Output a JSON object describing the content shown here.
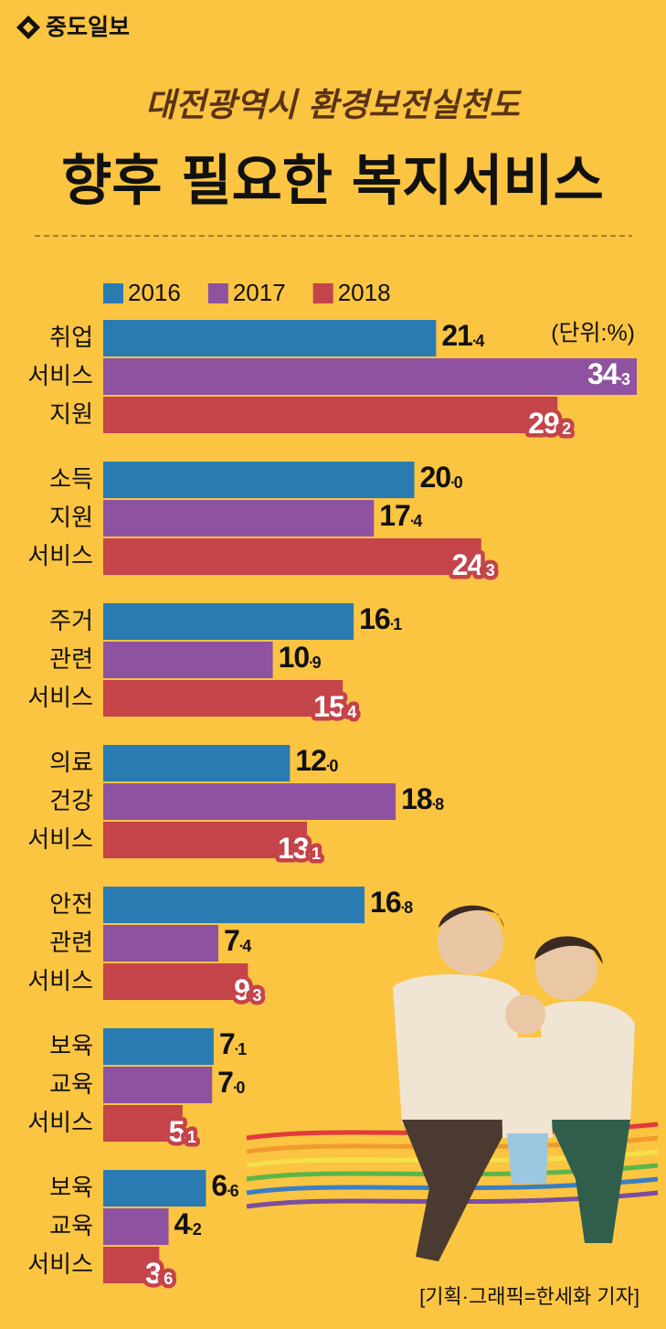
{
  "header": {
    "logo": "중도일보"
  },
  "chart_data": {
    "type": "hbar",
    "subtitle": "대전광역시 환경보전실천도",
    "title": "향후 필요한 복지서비스",
    "unit": "(단위:%)",
    "source": "[기획·그래픽=한세화 기자]",
    "categories": [
      "취업\n서비스\n지원",
      "소득\n지원\n서비스",
      "주거\n관련\n서비스",
      "의료\n건강\n서비스",
      "안전\n관련\n서비스",
      "보육\n교육\n서비스",
      "보육\n교육\n서비스"
    ],
    "series": [
      {
        "name": "2016",
        "color": "#2a7bb2",
        "values": [
          21.4,
          20.0,
          16.1,
          12.0,
          16.8,
          7.1,
          6.6
        ],
        "value_labels": [
          "21.4",
          "20.0",
          "16.1",
          "12.0",
          "16.8",
          "7.1",
          "6.6"
        ]
      },
      {
        "name": "2017",
        "color": "#8e52a0",
        "values": [
          34.3,
          17.4,
          10.9,
          18.8,
          7.4,
          7.0,
          4.2
        ],
        "value_labels": [
          "34.3",
          "17.4",
          "10.9",
          "18.8",
          "7.4",
          "7.0",
          "4.2"
        ]
      },
      {
        "name": "2018",
        "color": "#c4444a",
        "values": [
          29.2,
          24.3,
          15.4,
          13.1,
          9.3,
          5.1,
          3.6
        ],
        "value_labels": [
          "29.2",
          "24.3",
          "15.4",
          "13.1",
          "9.3",
          "5.1",
          "3.6"
        ]
      }
    ]
  }
}
